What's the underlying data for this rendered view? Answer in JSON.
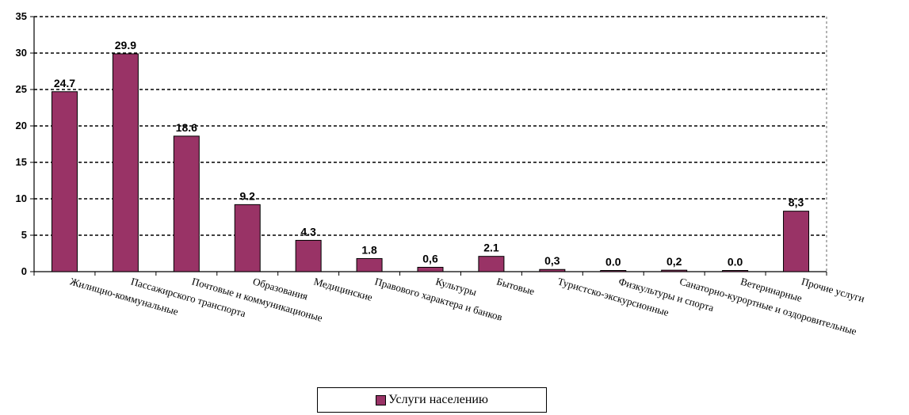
{
  "chart_data": {
    "type": "bar",
    "title": "",
    "xlabel": "",
    "ylabel": "",
    "ylim": [
      0,
      35
    ],
    "yticks": [
      0,
      5,
      10,
      15,
      20,
      25,
      30,
      35
    ],
    "grid": true,
    "legend_position": "bottom",
    "categories": [
      "Жилищно-коммунальные",
      "Пассажирского транспорта",
      "Почтовые и коммуникационые",
      "Образования",
      "Медицинские",
      "Правового характера и банков",
      "Культуры",
      "Бытовые",
      "Туристско-экскурсионные",
      "Физкультуры и спорта",
      "Санаторно-курортные и оздоровительные",
      "Ветеринарные",
      "Прочие услуги"
    ],
    "series": [
      {
        "name": "Услуги населению",
        "color": "#993366",
        "values": [
          24.7,
          29.9,
          18.6,
          9.2,
          4.3,
          1.8,
          0.6,
          2.1,
          0.3,
          0.0,
          0.2,
          0.0,
          8.3
        ],
        "labels": [
          "24.7",
          "29.9",
          "18.6",
          "9.2",
          "4.3",
          "1.8",
          "0,6",
          "2.1",
          "0,3",
          "0.0",
          "0,2",
          "0.0",
          "8,3"
        ]
      }
    ]
  }
}
